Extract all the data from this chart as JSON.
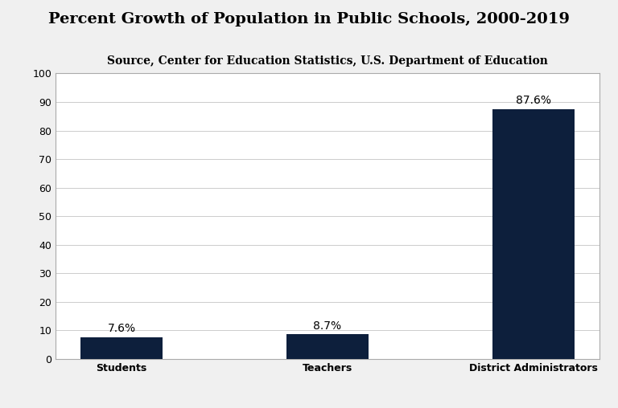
{
  "title": "Percent Growth of Population in Public Schools, 2000-2019",
  "subtitle": "Source, Center for Education Statistics, U.S. Department of Education",
  "categories": [
    "Students",
    "Teachers",
    "District Administrators"
  ],
  "values": [
    7.6,
    8.7,
    87.6
  ],
  "labels": [
    "7.6%",
    "8.7%",
    "87.6%"
  ],
  "bar_color": "#0d1f3c",
  "background_color": "#ffffff",
  "figure_background": "#f0f0f0",
  "ylim": [
    0,
    100
  ],
  "yticks": [
    0,
    10,
    20,
    30,
    40,
    50,
    60,
    70,
    80,
    90,
    100
  ],
  "title_fontsize": 14,
  "subtitle_fontsize": 10,
  "label_fontsize": 10,
  "tick_fontsize": 9,
  "bar_width": 0.4
}
